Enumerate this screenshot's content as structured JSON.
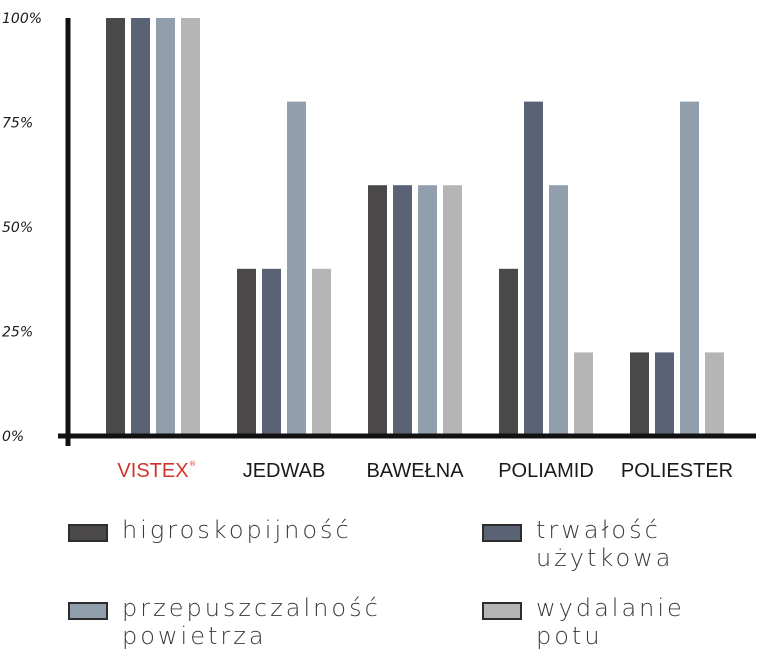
{
  "chart_data": {
    "type": "bar",
    "categories": [
      "VISTEX",
      "JEDWAB",
      "BAWEŁNA",
      "POLIAMID",
      "POLIESTER"
    ],
    "category_colors": [
      "#d1342c",
      "#1a1a1a",
      "#1a1a1a",
      "#1a1a1a",
      "#1a1a1a"
    ],
    "trademark_mark": "®",
    "series": [
      {
        "name": "HIGROSKOPIJNOŚĆ",
        "color": "#4a4848",
        "values": [
          100,
          40,
          60,
          40,
          20
        ]
      },
      {
        "name": "TRWAŁOŚĆ UŻYTKOWA",
        "color": "#5a6275",
        "values": [
          100,
          40,
          60,
          80,
          20
        ]
      },
      {
        "name": "PRZEPUSZCZALNOŚĆ POWIETRZA",
        "color": "#909fab",
        "values": [
          100,
          80,
          60,
          60,
          80
        ]
      },
      {
        "name": "WYDALANIE POTU",
        "color": "#b5b5b5",
        "values": [
          100,
          40,
          60,
          20,
          20
        ]
      }
    ],
    "ylim": [
      0,
      100
    ],
    "yticks": [
      0,
      25,
      50,
      75,
      100
    ],
    "ytick_labels": [
      "0%",
      "25%",
      "50%",
      "75%",
      "100%"
    ],
    "grid": false,
    "legend_position": "bottom"
  },
  "legend": [
    {
      "line1": "HIGROSKOPIJNOŚĆ",
      "line2": "",
      "color": "#4a4848"
    },
    {
      "line1": "TRWAŁOŚĆ",
      "line2": "UŻYTKOWA",
      "color": "#5a6275"
    },
    {
      "line1": "PRZEPUSZCZALNOŚĆ",
      "line2": "POWIETRZA",
      "color": "#909fab"
    },
    {
      "line1": "WYDALANIE",
      "line2": "POTU",
      "color": "#b5b5b5"
    }
  ]
}
